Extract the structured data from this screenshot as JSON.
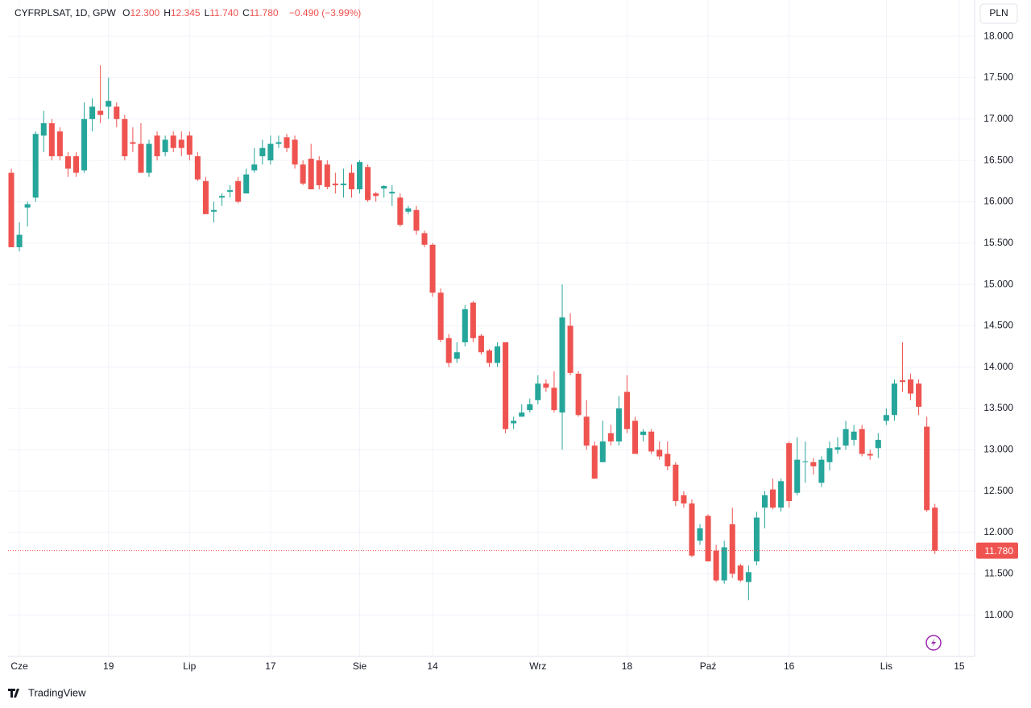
{
  "chart_data": {
    "type": "candlestick",
    "header": {
      "symbol": "CYFRPLSAT, 1D, GPW",
      "ohlc": [
        {
          "label": "O",
          "value": "12.300"
        },
        {
          "label": "H",
          "value": "12.345"
        },
        {
          "label": "L",
          "value": "11.740"
        },
        {
          "label": "C",
          "value": "11.780"
        }
      ],
      "change": "−0.490 (−3.99%)"
    },
    "currency": "PLN",
    "brand": "TradingView",
    "up_color": "#26a69a",
    "down_color": "#ef5350",
    "open": [
      16.35,
      15.45,
      15.93,
      16.05,
      16.8,
      16.95,
      16.85,
      16.55,
      16.55,
      16.38,
      17.0,
      17.1,
      17.15,
      17.15,
      17.0,
      16.72,
      16.7,
      16.35,
      16.8,
      16.6,
      16.8,
      16.75,
      16.8,
      16.55,
      16.25,
      15.88,
      16.05,
      16.12,
      16.25,
      16.1,
      16.38,
      16.55,
      16.5,
      16.7,
      16.78,
      16.75,
      16.45,
      16.52,
      16.5,
      16.45,
      16.22,
      16.2,
      16.35,
      16.15,
      16.42,
      16.1,
      16.16,
      16.1,
      16.05,
      15.88,
      15.9,
      15.62,
      15.48,
      14.9,
      14.35,
      14.1,
      14.3,
      14.78,
      14.38,
      14.2,
      14.05,
      14.3,
      13.32,
      13.4,
      13.48,
      13.6,
      13.8,
      13.75,
      13.45,
      14.5,
      13.92,
      13.4,
      13.05,
      12.85,
      13.2,
      13.1,
      13.7,
      13.35,
      13.18,
      13.22,
      13.0,
      12.95,
      12.82,
      12.45,
      12.35,
      11.9,
      12.2,
      11.78,
      11.42,
      12.1,
      11.6,
      11.4,
      11.65,
      12.3,
      12.52,
      12.3,
      13.08,
      12.48,
      12.85,
      12.85,
      12.6,
      12.85,
      13.0,
      13.05,
      13.12,
      13.25,
      12.95,
      13.02,
      13.35,
      13.42,
      13.84,
      13.85,
      13.8,
      13.28,
      12.3
    ],
    "high": [
      16.4,
      15.75,
      16.0,
      16.85,
      17.1,
      17.0,
      16.9,
      16.6,
      16.6,
      17.2,
      17.25,
      17.65,
      17.5,
      17.2,
      17.05,
      16.9,
      16.95,
      16.75,
      16.85,
      16.8,
      16.85,
      16.85,
      16.85,
      16.6,
      16.3,
      16.0,
      16.1,
      16.2,
      16.3,
      16.4,
      16.65,
      16.75,
      16.8,
      16.8,
      16.82,
      16.8,
      16.5,
      16.7,
      16.55,
      16.5,
      16.35,
      16.4,
      16.45,
      16.5,
      16.45,
      16.12,
      16.2,
      16.2,
      16.1,
      15.95,
      15.95,
      15.65,
      15.5,
      14.95,
      14.4,
      14.3,
      14.75,
      14.8,
      14.4,
      14.22,
      14.3,
      14.3,
      13.4,
      13.55,
      13.62,
      13.9,
      13.85,
      13.95,
      15.0,
      14.65,
      13.95,
      13.6,
      13.1,
      13.35,
      13.3,
      13.65,
      13.9,
      13.4,
      13.25,
      13.25,
      13.1,
      13.1,
      12.85,
      12.5,
      12.4,
      12.1,
      12.22,
      11.85,
      11.9,
      12.3,
      11.62,
      11.6,
      12.25,
      12.5,
      12.65,
      12.65,
      13.1,
      13.15,
      13.1,
      12.9,
      12.92,
      13.1,
      13.15,
      13.35,
      13.3,
      13.3,
      13.0,
      13.2,
      13.5,
      13.85,
      14.3,
      13.92,
      13.85,
      13.4,
      12.345
    ],
    "low": [
      15.45,
      15.4,
      15.7,
      16.0,
      16.6,
      16.5,
      16.5,
      16.3,
      16.3,
      16.35,
      16.85,
      16.95,
      17.0,
      16.9,
      16.5,
      16.6,
      16.35,
      16.3,
      16.5,
      16.55,
      16.6,
      16.55,
      16.5,
      16.25,
      15.85,
      15.75,
      15.95,
      16.05,
      15.98,
      16.1,
      16.35,
      16.45,
      16.45,
      16.65,
      16.6,
      16.4,
      16.2,
      16.15,
      16.15,
      16.15,
      16.1,
      16.05,
      16.05,
      16.1,
      16.0,
      16.0,
      16.05,
      15.95,
      15.7,
      15.85,
      15.6,
      15.45,
      14.85,
      14.3,
      14.0,
      14.05,
      14.25,
      14.3,
      14.15,
      14.0,
      14.0,
      13.2,
      13.25,
      13.4,
      13.45,
      13.55,
      13.7,
      13.45,
      13.0,
      13.9,
      13.4,
      13.0,
      12.65,
      12.85,
      13.05,
      13.05,
      13.2,
      12.95,
      13.1,
      12.95,
      12.88,
      12.75,
      12.32,
      12.3,
      11.7,
      11.85,
      11.65,
      11.4,
      11.38,
      11.45,
      11.4,
      11.18,
      11.6,
      12.05,
      12.28,
      12.25,
      12.3,
      12.45,
      12.6,
      12.7,
      12.55,
      12.75,
      12.95,
      13.0,
      13.05,
      12.92,
      12.88,
      12.9,
      13.3,
      13.35,
      13.7,
      13.6,
      13.42,
      12.25,
      11.74
    ],
    "close": [
      15.45,
      15.6,
      15.97,
      16.82,
      16.95,
      16.55,
      16.55,
      16.4,
      16.35,
      17.0,
      17.15,
      17.05,
      17.22,
      17.0,
      16.55,
      16.7,
      16.35,
      16.7,
      16.55,
      16.75,
      16.65,
      16.65,
      16.57,
      16.27,
      15.85,
      15.9,
      16.07,
      16.14,
      16.0,
      16.33,
      16.45,
      16.65,
      16.7,
      16.72,
      16.65,
      16.45,
      16.22,
      16.15,
      16.2,
      16.18,
      16.2,
      16.22,
      16.15,
      16.48,
      16.02,
      16.07,
      16.19,
      16.12,
      15.72,
      15.92,
      15.65,
      15.48,
      14.9,
      14.33,
      14.05,
      14.18,
      14.7,
      14.35,
      14.18,
      14.05,
      14.25,
      13.25,
      13.35,
      13.45,
      13.55,
      13.8,
      13.75,
      13.48,
      14.6,
      13.93,
      13.42,
      13.05,
      12.65,
      13.1,
      13.1,
      13.5,
      13.25,
      12.95,
      13.22,
      12.98,
      12.92,
      12.8,
      12.38,
      12.35,
      11.72,
      12.05,
      11.65,
      11.42,
      11.82,
      11.5,
      11.42,
      11.52,
      12.18,
      12.45,
      12.3,
      12.62,
      12.38,
      12.88,
      12.86,
      12.8,
      12.88,
      13.02,
      13.03,
      13.25,
      13.22,
      12.95,
      12.93,
      13.12,
      13.42,
      13.8,
      13.82,
      13.68,
      13.52,
      12.27,
      11.78
    ],
    "last_price": {
      "value": 11.78,
      "label": "11.780"
    },
    "xlim": [
      -0.4,
      118.9
    ],
    "xticks": [
      {
        "value": 1,
        "label": "Cze"
      },
      {
        "value": 12,
        "label": "19"
      },
      {
        "value": 22,
        "label": "Lip"
      },
      {
        "value": 32,
        "label": "17"
      },
      {
        "value": 43,
        "label": "Sie"
      },
      {
        "value": 52,
        "label": "14"
      },
      {
        "value": 65,
        "label": "Wrz"
      },
      {
        "value": 76,
        "label": "18"
      },
      {
        "value": 86,
        "label": "Paź"
      },
      {
        "value": 96,
        "label": "16"
      },
      {
        "value": 108,
        "label": "Lis"
      },
      {
        "value": 117,
        "label": "15"
      }
    ],
    "ylim": [
      10.5,
      18.44
    ],
    "yticks": [
      {
        "value": 11,
        "label": "11.000"
      },
      {
        "value": 11.5,
        "label": "11.500"
      },
      {
        "value": 12,
        "label": "12.000"
      },
      {
        "value": 12.5,
        "label": "12.500"
      },
      {
        "value": 13,
        "label": "13.000"
      },
      {
        "value": 13.5,
        "label": "13.500"
      },
      {
        "value": 14,
        "label": "14.000"
      },
      {
        "value": 14.5,
        "label": "14.500"
      },
      {
        "value": 15,
        "label": "15.000"
      },
      {
        "value": 15.5,
        "label": "15.500"
      },
      {
        "value": 16,
        "label": "16.000"
      },
      {
        "value": 16.5,
        "label": "16.500"
      },
      {
        "value": 17,
        "label": "17.000"
      },
      {
        "value": 17.5,
        "label": "17.500"
      },
      {
        "value": 18,
        "label": "18.000"
      }
    ],
    "grid": true
  }
}
